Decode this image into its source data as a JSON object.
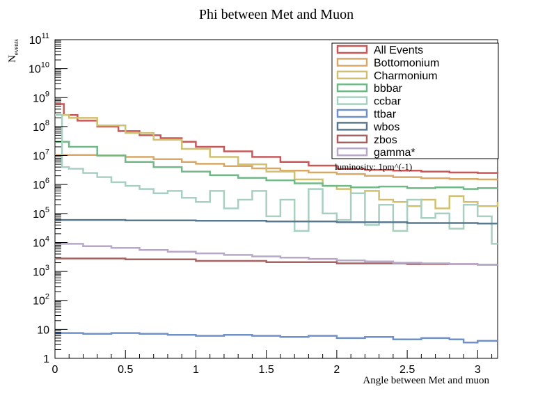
{
  "chart_data": {
    "type": "line",
    "title": "Phi between Met and Muon",
    "xlabel": "Angle between Met and muon",
    "ylabel": "N",
    "ylabel_sub": "events",
    "xlim": [
      0,
      3.1416
    ],
    "ylim": [
      1,
      100000000000
    ],
    "yscale": "log",
    "grid": false,
    "legend_position": "top-right",
    "x_ticks": [
      {
        "value": 0,
        "label": "0"
      },
      {
        "value": 0.5,
        "label": "0.5"
      },
      {
        "value": 1,
        "label": "1"
      },
      {
        "value": 1.5,
        "label": "1.5"
      },
      {
        "value": 2,
        "label": "2"
      },
      {
        "value": 2.5,
        "label": "2.5"
      },
      {
        "value": 3,
        "label": "3"
      }
    ],
    "y_ticks": [
      {
        "value": 1,
        "base": "1",
        "exp": ""
      },
      {
        "value": 10,
        "base": "10",
        "exp": ""
      },
      {
        "value": 100,
        "base": "10",
        "exp": "2"
      },
      {
        "value": 1000,
        "base": "10",
        "exp": "3"
      },
      {
        "value": 10000,
        "base": "10",
        "exp": "4"
      },
      {
        "value": 100000,
        "base": "10",
        "exp": "5"
      },
      {
        "value": 1000000,
        "base": "10",
        "exp": "6"
      },
      {
        "value": 10000000,
        "base": "10",
        "exp": "7"
      },
      {
        "value": 100000000,
        "base": "10",
        "exp": "8"
      },
      {
        "value": 1000000000,
        "base": "10",
        "exp": "9"
      },
      {
        "value": 10000000000,
        "base": "10",
        "exp": "10"
      },
      {
        "value": 100000000000,
        "base": "10",
        "exp": "11"
      }
    ],
    "annotation": "luminosity: 1pm^(-1)",
    "series": [
      {
        "name": "All Events",
        "color": "#c85858",
        "x": [
          0,
          0.0628,
          0.0628,
          0.16,
          0.3,
          0.45,
          0.6,
          0.75,
          0.9,
          1.0,
          1.2,
          1.4,
          1.6,
          1.8,
          2.0,
          2.2,
          2.4,
          2.6,
          2.8,
          3.0,
          3.1416
        ],
        "y": [
          600000000,
          250000000,
          250000000,
          160000000,
          100000000,
          70000000,
          50000000,
          40000000,
          30000000,
          20000000,
          14000000,
          9000000,
          6000000,
          4500000,
          3500000,
          3200000,
          3000000,
          2800000,
          2600000,
          2500000,
          2400000
        ]
      },
      {
        "name": "Bottomonium",
        "color": "#d8a868",
        "x": [
          0,
          0.1,
          0.3,
          0.5,
          0.7,
          0.9,
          1.0,
          1.2,
          1.4,
          1.6,
          1.8,
          2.0,
          2.2,
          2.4,
          2.6,
          2.8,
          3.0,
          3.1416
        ],
        "y": [
          10500000,
          10500000,
          10000000,
          9000000,
          7500000,
          6000000,
          5200000,
          4300000,
          3600000,
          3000000,
          2600000,
          2300000,
          2000000,
          1800000,
          1650000,
          1550000,
          1500000,
          1500000
        ]
      },
      {
        "name": "Charmonium",
        "color": "#d0c070",
        "x": [
          0,
          0.1,
          0.3,
          0.5,
          0.7,
          0.9,
          1.1,
          1.3,
          1.5,
          1.7,
          1.9,
          2.0,
          2.1,
          2.2,
          2.3,
          2.4,
          2.5,
          2.6,
          2.7,
          2.8,
          2.9,
          3.0,
          3.1416
        ],
        "y": [
          250000000,
          200000000,
          110000000,
          60000000,
          35000000,
          17000000,
          9000000,
          5000000,
          2800000,
          1500000,
          900000,
          700000,
          500000,
          600000,
          300000,
          250000,
          180000,
          300000,
          150000,
          400000,
          250000,
          180000,
          250000
        ]
      },
      {
        "name": "bbbar",
        "color": "#70b888",
        "x": [
          0,
          0.1,
          0.3,
          0.5,
          0.7,
          0.9,
          1.1,
          1.3,
          1.5,
          1.7,
          1.9,
          2.1,
          2.3,
          2.5,
          2.7,
          2.9,
          3.0,
          3.1416
        ],
        "y": [
          30000000,
          20000000,
          10000000,
          6000000,
          4000000,
          2800000,
          2100000,
          1700000,
          1400000,
          1100000,
          900000,
          800000,
          850000,
          750000,
          800000,
          700000,
          750000,
          750000
        ]
      },
      {
        "name": "ccbar",
        "color": "#a8d0c0",
        "x": [
          0,
          0.05,
          0.1,
          0.2,
          0.3,
          0.4,
          0.5,
          0.6,
          0.7,
          0.8,
          0.9,
          1.0,
          1.1,
          1.2,
          1.3,
          1.4,
          1.5,
          1.6,
          1.7,
          1.8,
          1.9,
          2.0,
          2.1,
          2.2,
          2.3,
          2.4,
          2.5,
          2.6,
          2.7,
          2.8,
          2.9,
          3.0,
          3.1,
          3.1416
        ],
        "y": [
          250000000,
          4000000,
          3500000,
          2500000,
          1800000,
          1200000,
          900000,
          700000,
          500000,
          600000,
          350000,
          250000,
          600000,
          150000,
          300000,
          600000,
          80000,
          300000,
          25000,
          700000,
          100000,
          60000,
          500000,
          40000,
          200000,
          25000,
          300000,
          70000,
          100000,
          30000,
          200000,
          80000,
          9000,
          9000
        ]
      },
      {
        "name": "ttbar",
        "color": "#7090c8",
        "x": [
          0,
          0.2,
          0.4,
          0.6,
          0.8,
          1.0,
          1.2,
          1.4,
          1.6,
          1.8,
          2.0,
          2.2,
          2.4,
          2.6,
          2.8,
          2.9,
          3.0,
          3.1416
        ],
        "y": [
          7.5,
          7,
          7.5,
          7,
          6.5,
          6,
          6.5,
          6,
          5.5,
          6,
          5,
          5.5,
          4.5,
          5,
          4.5,
          3.5,
          4,
          4
        ]
      },
      {
        "name": "wbos",
        "color": "#587890",
        "x": [
          0,
          0.5,
          1.0,
          1.5,
          2.0,
          2.5,
          3.0,
          3.1416
        ],
        "y": [
          60000,
          58000,
          56000,
          53000,
          50000,
          47000,
          45000,
          45000
        ]
      },
      {
        "name": "zbos",
        "color": "#a86060",
        "x": [
          0,
          0.5,
          1.0,
          1.5,
          2.0,
          2.5,
          3.0,
          3.1416
        ],
        "y": [
          2800,
          2600,
          2300,
          2100,
          1900,
          1800,
          1700,
          1700
        ]
      },
      {
        "name": "gamma*",
        "color": "#b8a8c8",
        "x": [
          0,
          0.2,
          0.4,
          0.6,
          0.8,
          1.0,
          1.2,
          1.4,
          1.6,
          1.8,
          2.0,
          2.2,
          2.4,
          2.6,
          2.8,
          3.0,
          3.1416
        ],
        "y": [
          9000,
          7500,
          6500,
          5500,
          4800,
          4200,
          3700,
          3300,
          3000,
          2700,
          2400,
          2200,
          2000,
          1900,
          1800,
          1700,
          1700
        ]
      }
    ]
  }
}
